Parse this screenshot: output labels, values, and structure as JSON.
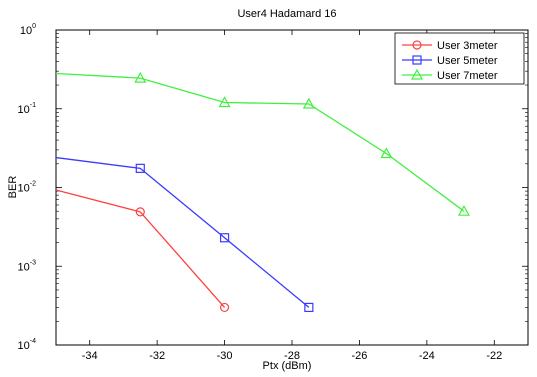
{
  "chart_data": {
    "type": "line",
    "title": "User4 Hadamard 16",
    "xlabel": "Ptx (dBm)",
    "ylabel": "BER",
    "xlim": [
      -35,
      -21
    ],
    "ylim": [
      0.0001,
      1
    ],
    "yscale": "log",
    "xticks": [
      -34,
      -32,
      -30,
      -28,
      -26,
      -24,
      -22
    ],
    "xtick_labels": [
      "-34",
      "-32",
      "-30",
      "-28",
      "-26",
      "-24",
      "-22"
    ],
    "yticks": [
      0.0001,
      0.001,
      0.01,
      0.1,
      1
    ],
    "ytick_labels": [
      {
        "base": "10",
        "exp": "-4"
      },
      {
        "base": "10",
        "exp": "-3"
      },
      {
        "base": "10",
        "exp": "-2"
      },
      {
        "base": "10",
        "exp": "-1"
      },
      {
        "base": "10",
        "exp": "0"
      }
    ],
    "grid": false,
    "legend_position": "top-right",
    "series": [
      {
        "name": "User 3meter",
        "color": "#ff4040",
        "marker": "circle",
        "x": [
          -35,
          -32.5,
          -30
        ],
        "y": [
          0.0093,
          0.0049,
          0.0003
        ]
      },
      {
        "name": "User 5meter",
        "color": "#3b3bff",
        "marker": "square",
        "x": [
          -35,
          -32.5,
          -30,
          -27.5
        ],
        "y": [
          0.024,
          0.0175,
          0.0023,
          0.0003
        ]
      },
      {
        "name": "User 7meter",
        "color": "#40f040",
        "marker": "triangle",
        "x": [
          -35,
          -32.5,
          -30,
          -27.5,
          -25.2,
          -22.9
        ],
        "y": [
          0.28,
          0.245,
          0.12,
          0.115,
          0.027,
          0.005
        ]
      }
    ]
  }
}
